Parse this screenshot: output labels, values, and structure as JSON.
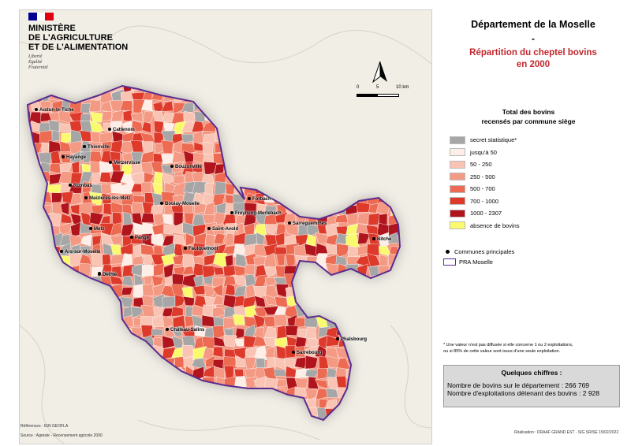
{
  "logo": {
    "ministry_lines": [
      "MINISTÈRE",
      "DE L'AGRICULTURE",
      "ET DE L'ALIMENTATION"
    ],
    "motto_lines": [
      "Liberté",
      "Égalité",
      "Fraternité"
    ],
    "flag_colors": [
      "#000091",
      "#ffffff",
      "#e1000f"
    ]
  },
  "scale": {
    "labels": [
      "0",
      "5",
      "10 km"
    ]
  },
  "title": {
    "line1": "Département de la Moselle",
    "line2": "-",
    "line3": "Répartition du cheptel bovins",
    "line4": "en 2000"
  },
  "legend": {
    "title_line1": "Total des bovins",
    "title_line2": "recensés par commune siège",
    "classes": [
      {
        "label": "secret statistique*",
        "color": "#a6a6a6"
      },
      {
        "label": "jusqu'à 50",
        "color": "#fdeee8"
      },
      {
        "label": "50 - 250",
        "color": "#f9c4b3"
      },
      {
        "label": "250 - 500",
        "color": "#f49a84"
      },
      {
        "label": "500 - 700",
        "color": "#ec6b52"
      },
      {
        "label": "700 - 1000",
        "color": "#dd3a2c"
      },
      {
        "label": "1000 - 2307",
        "color": "#b0141c"
      },
      {
        "label": "absence de bovins",
        "color": "#fafa6e"
      }
    ],
    "main_communes": "Communes principales",
    "pra": "PRA Moselle",
    "pra_color": "#5b2c8f"
  },
  "footnote": [
    "* Une valeur n'est pas diffusée si elle concerne 1 ou 2 exploitations,",
    "ou si 85% de cette valeur sont issus d'une seule exploitation."
  ],
  "figures": {
    "heading": "Quelques chiffres :",
    "line1": "Nombre de bovins sur le département : 266 769",
    "line2": "Nombre d'exploitations détenant des bovins : 2 928"
  },
  "credits": {
    "references": "Références : IGN GEOFLA",
    "source": "Source : Agreste - Recensement agricole 2000",
    "realisation": "Réalisation : DRAAF GRAND EST - SIG SRISE 15/02/2022"
  },
  "cities": [
    {
      "name": "Audun-le-Tiche",
      "key": "audun"
    },
    {
      "name": "Cattenom",
      "key": "cattenom"
    },
    {
      "name": "Thionville",
      "key": "thionville"
    },
    {
      "name": "Hayange",
      "key": "hayange"
    },
    {
      "name": "Metzervisse",
      "key": "metzervisse"
    },
    {
      "name": "Bouzonville",
      "key": "bouzonville"
    },
    {
      "name": "Rombas",
      "key": "rombas"
    },
    {
      "name": "Maizières-lès-Metz",
      "key": "maizieres"
    },
    {
      "name": "Boulay-Moselle",
      "key": "boulay"
    },
    {
      "name": "Forbach",
      "key": "forbach"
    },
    {
      "name": "Freyming-Merlebach",
      "key": "freyming"
    },
    {
      "name": "Sarreguemines",
      "key": "sarreguemines"
    },
    {
      "name": "Metz",
      "key": "metz"
    },
    {
      "name": "Faulquemont",
      "key": "faulquemont"
    },
    {
      "name": "Saint-Avold",
      "key": "saintavold"
    },
    {
      "name": "Pange",
      "key": "pange"
    },
    {
      "name": "Bitche",
      "key": "bitche"
    },
    {
      "name": "Ars-sur-Moselle",
      "key": "ars"
    },
    {
      "name": "Verny",
      "key": "verny"
    },
    {
      "name": "Delme",
      "key": "delme"
    },
    {
      "name": "Château-Salins",
      "key": "chateausalins"
    },
    {
      "name": "Phalsbourg",
      "key": "phalsbourg"
    },
    {
      "name": "Sarrebourg",
      "key": "sarrebourg"
    }
  ]
}
